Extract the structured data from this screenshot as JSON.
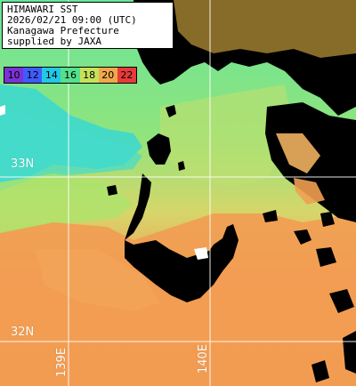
{
  "header": {
    "line1": "HIMAWARI SST",
    "line2": "2026/02/21 09:00 (UTC)",
    "line3": "Kanagawa Prefecture",
    "line4": "supplied by JAXA"
  },
  "legend": [
    {
      "label": "10",
      "color": "#7a33d4"
    },
    {
      "label": "12",
      "color": "#3f5cff"
    },
    {
      "label": "14",
      "color": "#22c8e6"
    },
    {
      "label": "16",
      "color": "#55e08c"
    },
    {
      "label": "18",
      "color": "#c6e25a"
    },
    {
      "label": "20",
      "color": "#f0a84c"
    },
    {
      "label": "22",
      "color": "#e83a3a"
    }
  ],
  "grid_labels": {
    "lat_top": "33N",
    "lat_bottom": "32N",
    "lon_left": "139E",
    "lon_right": "140E"
  },
  "colors": {
    "warm_sea": "#f09a52",
    "cool_sea": "#5fe6a8",
    "cold_sea": "#35d6cf",
    "land": "#000000",
    "grid": "#ffffff"
  }
}
